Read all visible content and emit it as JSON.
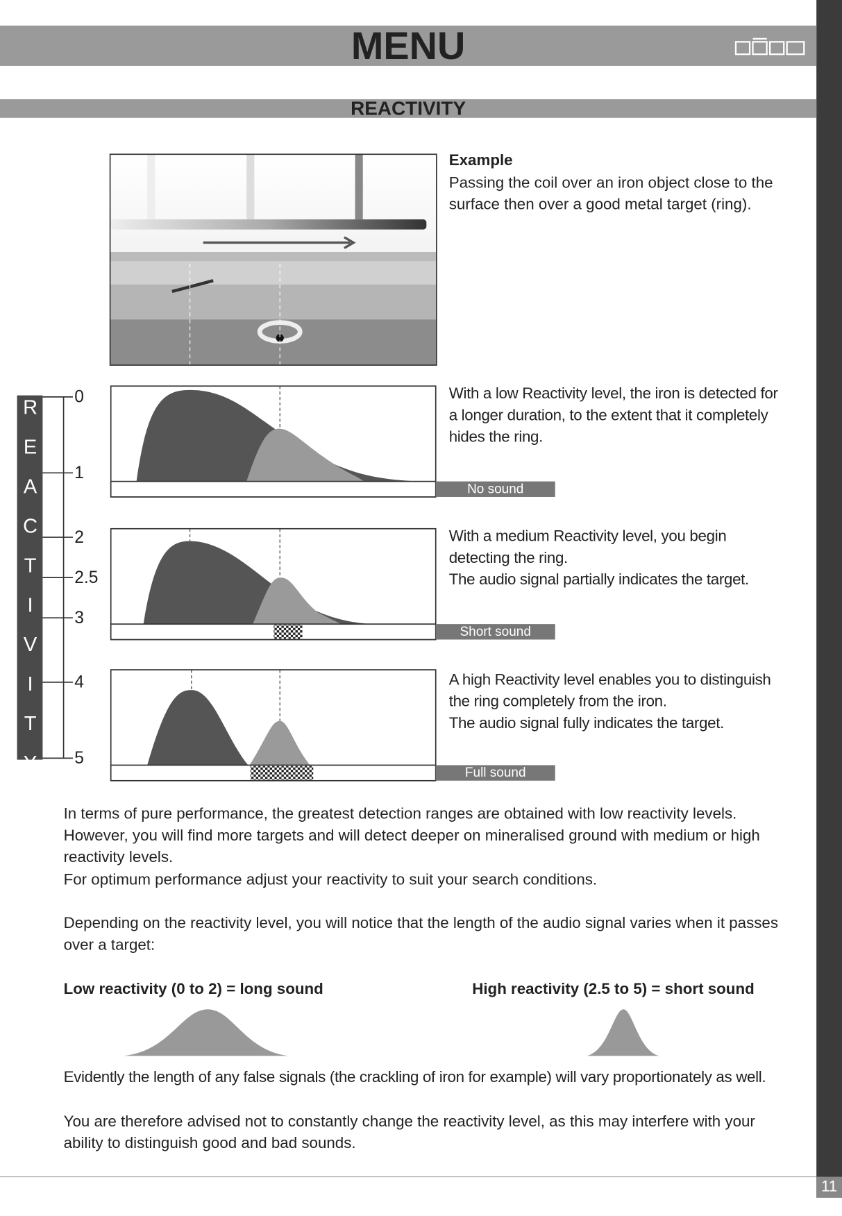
{
  "header": {
    "title": "MENU"
  },
  "section": {
    "title": "REACTIVITY"
  },
  "example": {
    "title": "Example",
    "text": "Passing the coil over an iron object close to the surface then over a good metal target (ring)."
  },
  "scale": {
    "label": "REACTIVITY",
    "ticks": [
      0,
      1,
      2,
      2.5,
      3,
      4,
      5
    ]
  },
  "panels": [
    {
      "lines": [
        "With a low Reactivity level, the iron is detected for a longer duration, to the extent that it completely hides the ring."
      ],
      "sound": "No sound"
    },
    {
      "lines": [
        "With a medium Reactivity level, you begin detecting the ring.",
        "The audio signal partially indicates the target."
      ],
      "sound": "Short sound"
    },
    {
      "lines": [
        "A high Reactivity level enables you to distinguish the ring completely from the iron.",
        "The audio signal fully indicates the target."
      ],
      "sound": "Full sound"
    }
  ],
  "body": {
    "paragraphs": [
      "In terms of pure performance, the greatest detection ranges are obtained with low reactivity levels. However, you will find more targets and will detect deeper on mineralised ground with medium or high reactivity levels.",
      "For optimum performance adjust your reactivity to suit your search conditions.",
      "Depending on the reactivity level, you will notice that the length of the audio signal varies when it passes over a target:"
    ]
  },
  "comparison": {
    "low": "Low reactivity (0 to 2) = long sound",
    "high": "High reactivity (2.5 to 5) = short sound"
  },
  "notes": [
    "Evidently the length of any false signals (the crackling of iron for example) will vary proportionately as well.",
    "You are therefore advised not to constantly change the reactivity level, as this may interfere with your ability to distinguish good and bad sounds."
  ],
  "footer": {
    "page": 11
  }
}
